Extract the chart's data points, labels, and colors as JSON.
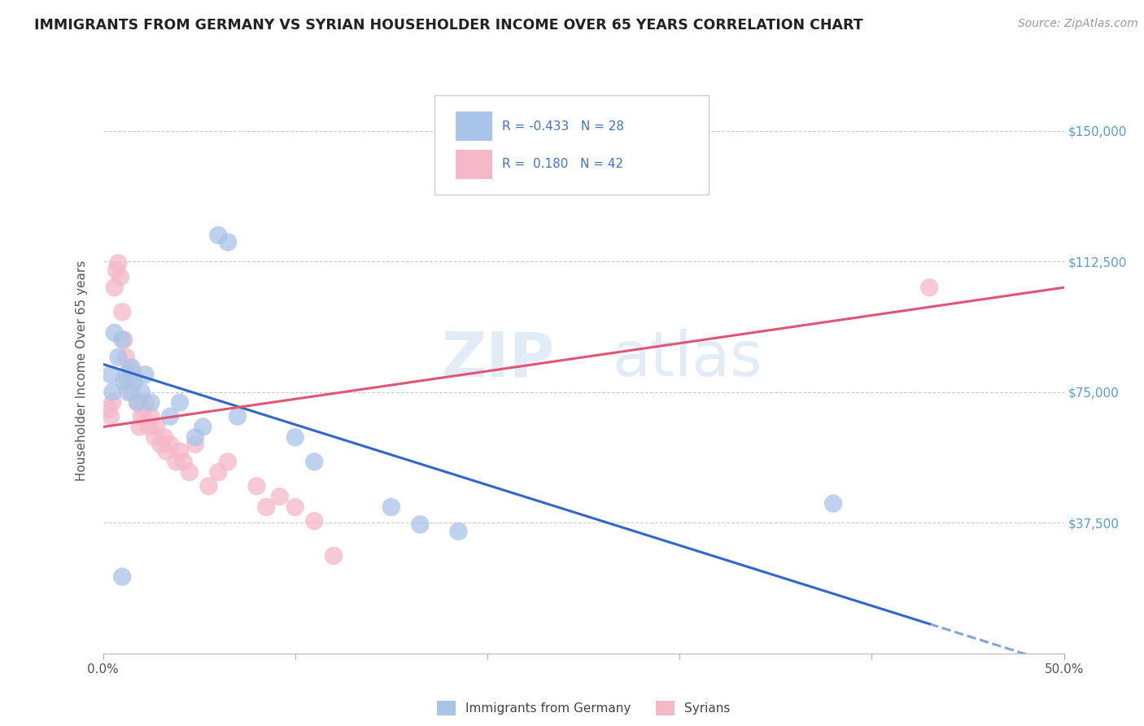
{
  "title": "IMMIGRANTS FROM GERMANY VS SYRIAN HOUSEHOLDER INCOME OVER 65 YEARS CORRELATION CHART",
  "source": "Source: ZipAtlas.com",
  "ylabel": "Householder Income Over 65 years",
  "xlim": [
    0.0,
    0.5
  ],
  "ylim": [
    0,
    162500
  ],
  "yticks": [
    0,
    37500,
    75000,
    112500,
    150000
  ],
  "yticklabels": [
    "",
    "$37,500",
    "$75,000",
    "$112,500",
    "$150,000"
  ],
  "germany_R": -0.433,
  "germany_N": 28,
  "syria_R": 0.18,
  "syria_N": 42,
  "legend_label_germany": "Immigrants from Germany",
  "legend_label_syria": "Syrians",
  "germany_color": "#a8c4e8",
  "germany_line_color": "#3366cc",
  "syria_color": "#f5b8c8",
  "syria_line_color": "#e05575",
  "watermark_zip": "ZIP",
  "watermark_atlas": "atlas",
  "germany_x": [
    0.004,
    0.005,
    0.006,
    0.008,
    0.01,
    0.011,
    0.012,
    0.013,
    0.015,
    0.016,
    0.018,
    0.02,
    0.022,
    0.025,
    0.035,
    0.04,
    0.048,
    0.052,
    0.06,
    0.065,
    0.07,
    0.1,
    0.11,
    0.15,
    0.165,
    0.185,
    0.38,
    0.01
  ],
  "germany_y": [
    80000,
    75000,
    92000,
    85000,
    90000,
    78000,
    80000,
    75000,
    82000,
    78000,
    72000,
    75000,
    80000,
    72000,
    68000,
    72000,
    62000,
    65000,
    120000,
    118000,
    68000,
    62000,
    55000,
    42000,
    37000,
    35000,
    43000,
    22000
  ],
  "syria_x": [
    0.003,
    0.004,
    0.005,
    0.006,
    0.007,
    0.008,
    0.009,
    0.01,
    0.011,
    0.012,
    0.013,
    0.014,
    0.015,
    0.016,
    0.018,
    0.019,
    0.02,
    0.021,
    0.022,
    0.024,
    0.025,
    0.027,
    0.028,
    0.03,
    0.032,
    0.033,
    0.035,
    0.038,
    0.04,
    0.042,
    0.045,
    0.048,
    0.055,
    0.06,
    0.065,
    0.08,
    0.085,
    0.092,
    0.1,
    0.11,
    0.12,
    0.43
  ],
  "syria_y": [
    70000,
    68000,
    72000,
    105000,
    110000,
    112000,
    108000,
    98000,
    90000,
    85000,
    78000,
    82000,
    75000,
    80000,
    72000,
    65000,
    68000,
    70000,
    72000,
    65000,
    68000,
    62000,
    65000,
    60000,
    62000,
    58000,
    60000,
    55000,
    58000,
    55000,
    52000,
    60000,
    48000,
    52000,
    55000,
    48000,
    42000,
    45000,
    42000,
    38000,
    28000,
    105000
  ],
  "figsize": [
    14.06,
    8.92
  ],
  "dpi": 100
}
